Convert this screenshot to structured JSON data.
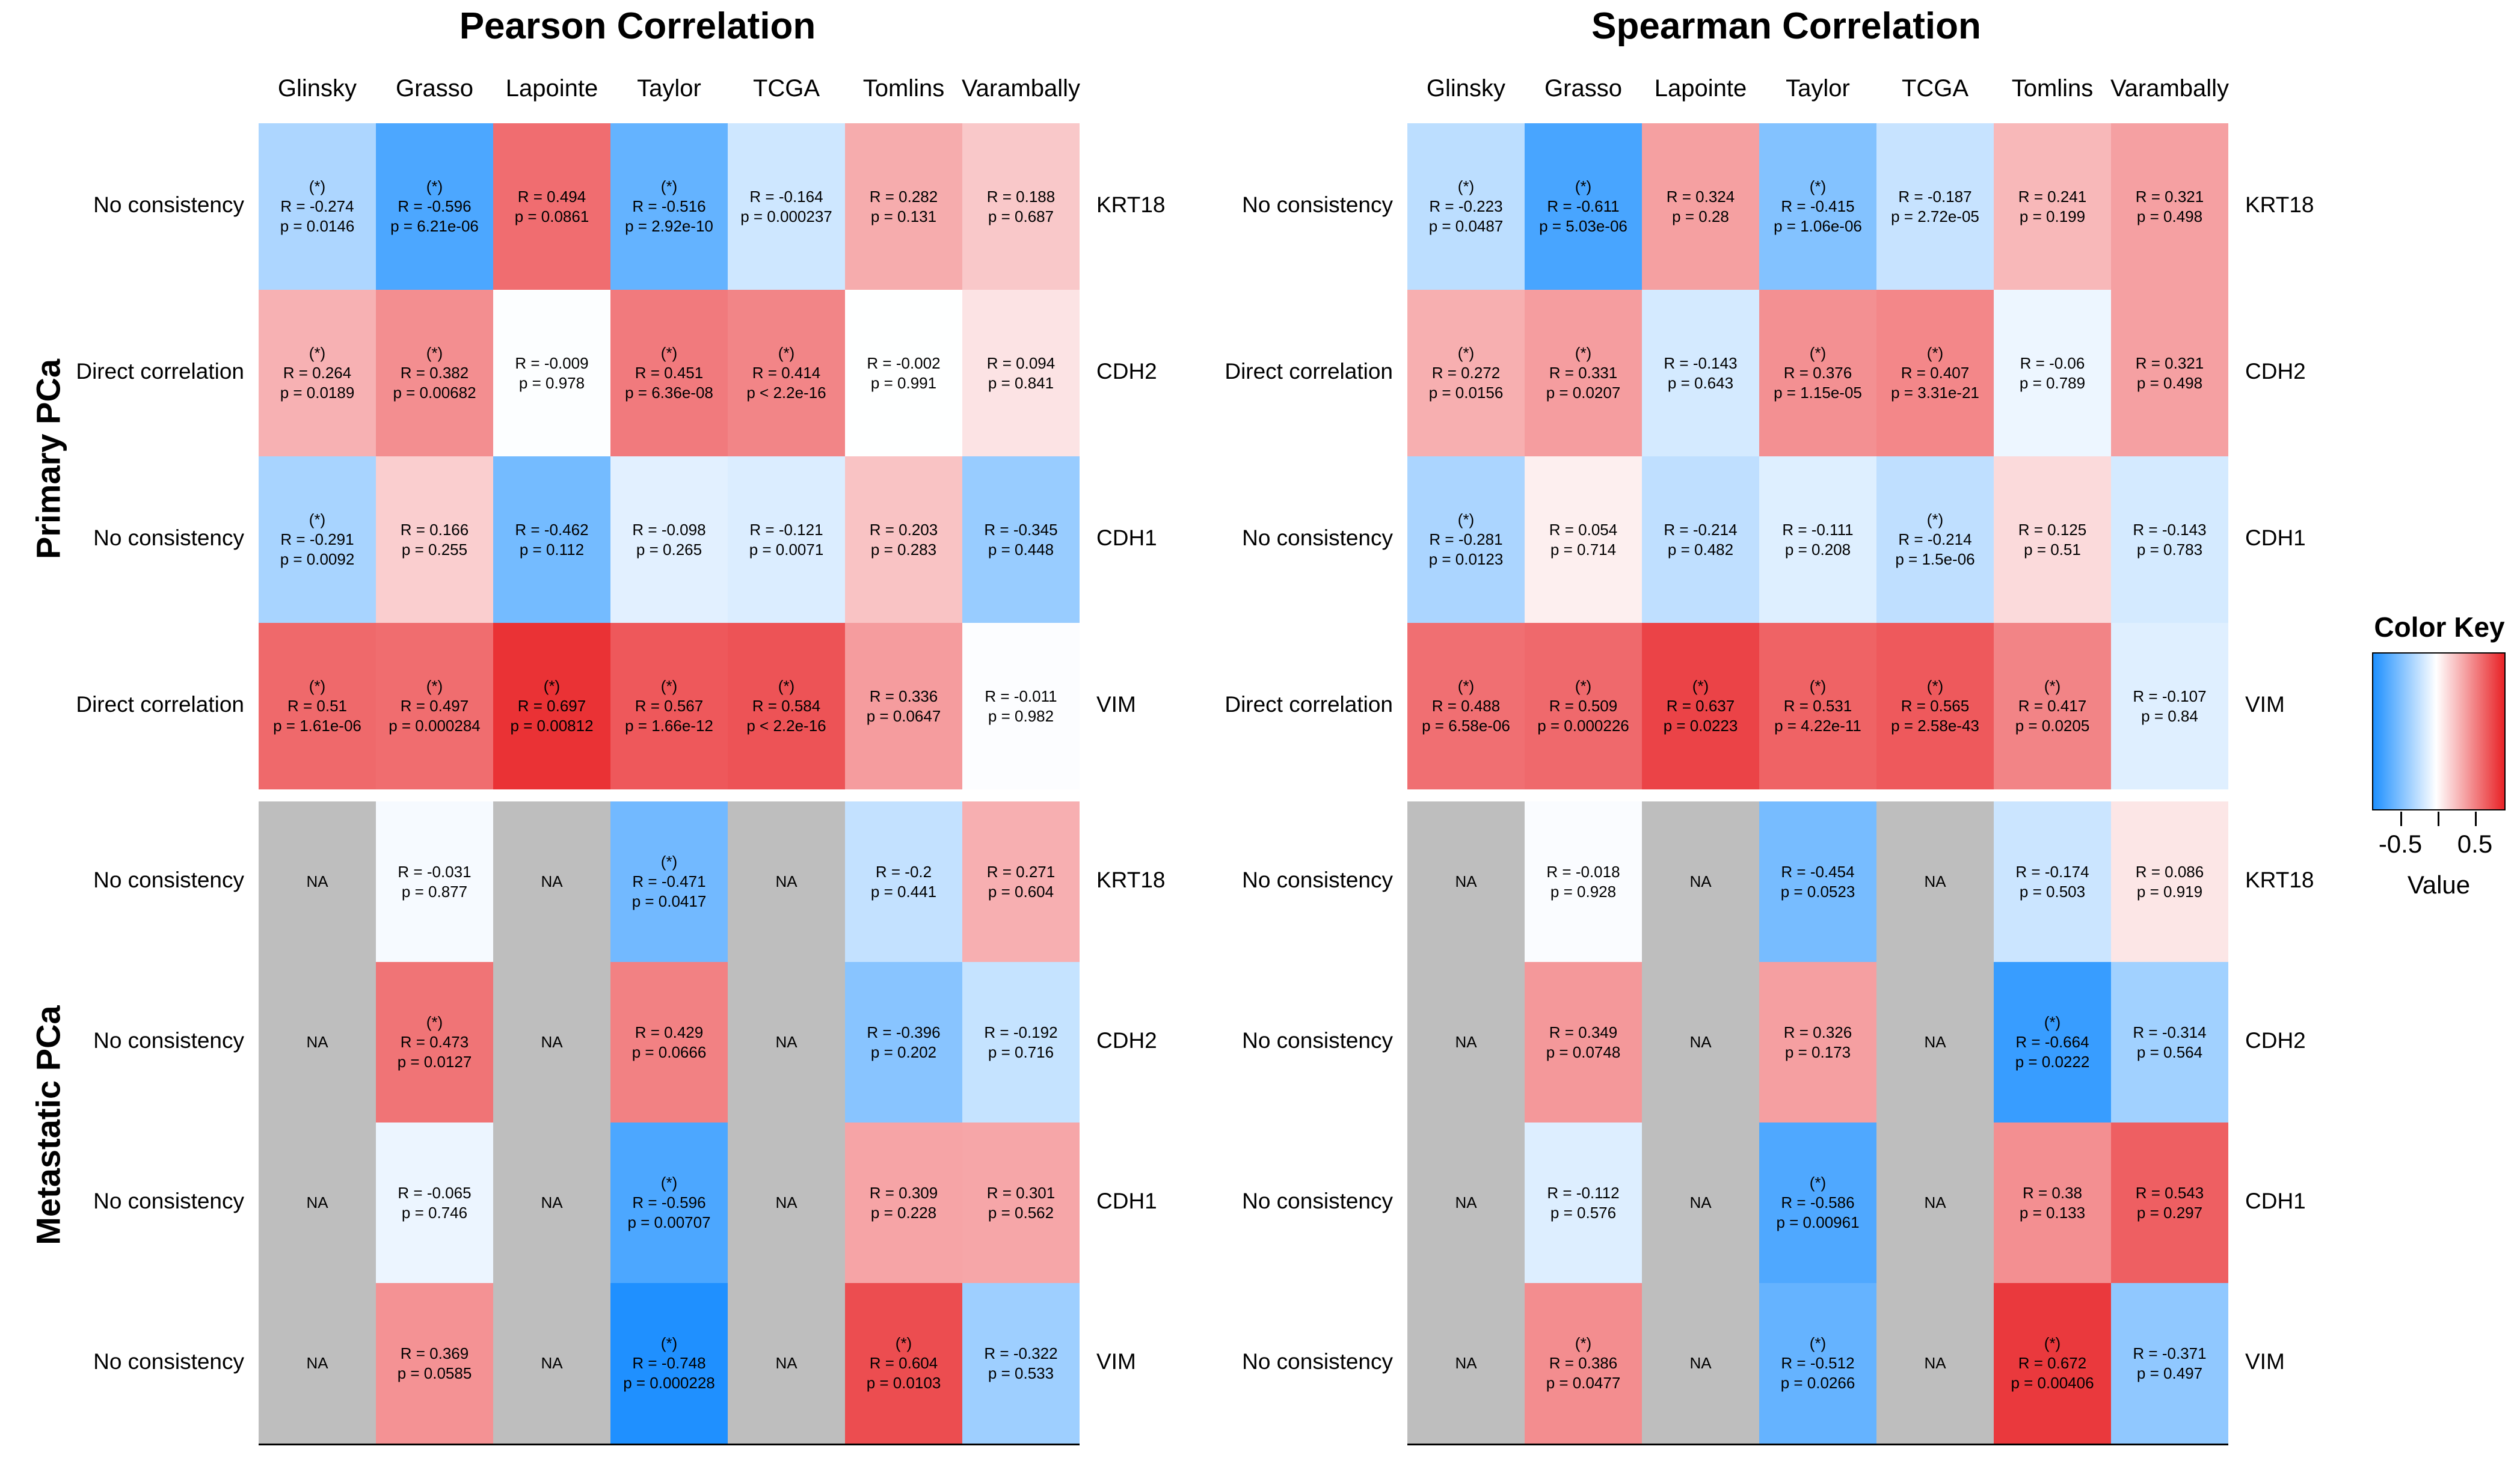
{
  "figure": {
    "kind": "correlation-heatmap-figure"
  },
  "chart_data": {
    "type": "heatmap",
    "value_scale": {
      "saturation_at": 0.75
    },
    "colors": {
      "negative": "#1E90FF",
      "zero": "#FFFFFF",
      "positive": "#E82226",
      "na": "#BEBEBE"
    },
    "color_key": {
      "title": "Color Key",
      "xlabel": "Value",
      "tick_labels": [
        "-0.5",
        "0.5"
      ],
      "tick_positions_pct": [
        21,
        49,
        77
      ],
      "labeled_tick_idx": [
        0,
        2
      ]
    },
    "na_text": "NA",
    "sig_marker": "(*)",
    "columns": [
      "Glinsky",
      "Grasso",
      "Lapointe",
      "Taylor",
      "TCGA",
      "Tomlins",
      "Varambally"
    ],
    "group_labels": [
      "Primary PCa",
      "Metastatic PCa"
    ],
    "panels": [
      {
        "title": "Pearson Correlation",
        "groups": [
          {
            "group": "Primary PCa",
            "rows": [
              {
                "consistency": "No consistency",
                "gene": "KRT18",
                "cells": [
                  {
                    "r": -0.274,
                    "p": "0.0146",
                    "sig": true
                  },
                  {
                    "r": -0.596,
                    "p": "6.21e-06",
                    "sig": true
                  },
                  {
                    "r": 0.494,
                    "p": "0.0861",
                    "sig": false
                  },
                  {
                    "r": -0.516,
                    "p": "2.92e-10",
                    "sig": true
                  },
                  {
                    "r": -0.164,
                    "p": "0.000237",
                    "sig": false
                  },
                  {
                    "r": 0.282,
                    "p": "0.131",
                    "sig": false
                  },
                  {
                    "r": 0.188,
                    "p": "0.687",
                    "sig": false
                  }
                ]
              },
              {
                "consistency": "Direct correlation",
                "gene": "CDH2",
                "cells": [
                  {
                    "r": 0.264,
                    "p": "0.0189",
                    "sig": true
                  },
                  {
                    "r": 0.382,
                    "p": "0.00682",
                    "sig": true
                  },
                  {
                    "r": -0.009,
                    "p": "0.978",
                    "sig": false
                  },
                  {
                    "r": 0.451,
                    "p": "6.36e-08",
                    "sig": true
                  },
                  {
                    "r": 0.414,
                    "p": "< 2.2e-16",
                    "sig": true
                  },
                  {
                    "r": -0.002,
                    "p": "0.991",
                    "sig": false
                  },
                  {
                    "r": 0.094,
                    "p": "0.841",
                    "sig": false
                  }
                ]
              },
              {
                "consistency": "No consistency",
                "gene": "CDH1",
                "cells": [
                  {
                    "r": -0.291,
                    "p": "0.0092",
                    "sig": true
                  },
                  {
                    "r": 0.166,
                    "p": "0.255",
                    "sig": false
                  },
                  {
                    "r": -0.462,
                    "p": "0.112",
                    "sig": false
                  },
                  {
                    "r": -0.098,
                    "p": "0.265",
                    "sig": false
                  },
                  {
                    "r": -0.121,
                    "p": "0.0071",
                    "sig": false
                  },
                  {
                    "r": 0.203,
                    "p": "0.283",
                    "sig": false
                  },
                  {
                    "r": -0.345,
                    "p": "0.448",
                    "sig": false
                  }
                ]
              },
              {
                "consistency": "Direct correlation",
                "gene": "VIM",
                "cells": [
                  {
                    "r": 0.51,
                    "p": "1.61e-06",
                    "sig": true
                  },
                  {
                    "r": 0.497,
                    "p": "0.000284",
                    "sig": true
                  },
                  {
                    "r": 0.697,
                    "p": "0.00812",
                    "sig": true
                  },
                  {
                    "r": 0.567,
                    "p": "1.66e-12",
                    "sig": true
                  },
                  {
                    "r": 0.584,
                    "p": "< 2.2e-16",
                    "sig": true
                  },
                  {
                    "r": 0.336,
                    "p": "0.0647",
                    "sig": false
                  },
                  {
                    "r": -0.011,
                    "p": "0.982",
                    "sig": false
                  }
                ]
              }
            ]
          },
          {
            "group": "Metastatic PCa",
            "rows": [
              {
                "consistency": "No consistency",
                "gene": "KRT18",
                "cells": [
                  {
                    "na": true
                  },
                  {
                    "r": -0.031,
                    "p": "0.877",
                    "sig": false
                  },
                  {
                    "na": true
                  },
                  {
                    "r": -0.471,
                    "p": "0.0417",
                    "sig": true
                  },
                  {
                    "na": true
                  },
                  {
                    "r": -0.2,
                    "p": "0.441",
                    "sig": false
                  },
                  {
                    "r": 0.271,
                    "p": "0.604",
                    "sig": false
                  }
                ]
              },
              {
                "consistency": "No consistency",
                "gene": "CDH2",
                "cells": [
                  {
                    "na": true
                  },
                  {
                    "r": 0.473,
                    "p": "0.0127",
                    "sig": true
                  },
                  {
                    "na": true
                  },
                  {
                    "r": 0.429,
                    "p": "0.0666",
                    "sig": false
                  },
                  {
                    "na": true
                  },
                  {
                    "r": -0.396,
                    "p": "0.202",
                    "sig": false
                  },
                  {
                    "r": -0.192,
                    "p": "0.716",
                    "sig": false
                  }
                ]
              },
              {
                "consistency": "No consistency",
                "gene": "CDH1",
                "cells": [
                  {
                    "na": true
                  },
                  {
                    "r": -0.065,
                    "p": "0.746",
                    "sig": false
                  },
                  {
                    "na": true
                  },
                  {
                    "r": -0.596,
                    "p": "0.00707",
                    "sig": true
                  },
                  {
                    "na": true
                  },
                  {
                    "r": 0.309,
                    "p": "0.228",
                    "sig": false
                  },
                  {
                    "r": 0.301,
                    "p": "0.562",
                    "sig": false
                  }
                ]
              },
              {
                "consistency": "No consistency",
                "gene": "VIM",
                "cells": [
                  {
                    "na": true
                  },
                  {
                    "r": 0.369,
                    "p": "0.0585",
                    "sig": false
                  },
                  {
                    "na": true
                  },
                  {
                    "r": -0.748,
                    "p": "0.000228",
                    "sig": true
                  },
                  {
                    "na": true
                  },
                  {
                    "r": 0.604,
                    "p": "0.0103",
                    "sig": true
                  },
                  {
                    "r": -0.322,
                    "p": "0.533",
                    "sig": false
                  }
                ]
              }
            ]
          }
        ]
      },
      {
        "title": "Spearman Correlation",
        "groups": [
          {
            "group": "Primary PCa",
            "rows": [
              {
                "consistency": "No consistency",
                "gene": "KRT18",
                "cells": [
                  {
                    "r": -0.223,
                    "p": "0.0487",
                    "sig": true
                  },
                  {
                    "r": -0.611,
                    "p": "5.03e-06",
                    "sig": true
                  },
                  {
                    "r": 0.324,
                    "p": "0.28",
                    "sig": false
                  },
                  {
                    "r": -0.415,
                    "p": "1.06e-06",
                    "sig": true
                  },
                  {
                    "r": -0.187,
                    "p": "2.72e-05",
                    "sig": false
                  },
                  {
                    "r": 0.241,
                    "p": "0.199",
                    "sig": false
                  },
                  {
                    "r": 0.321,
                    "p": "0.498",
                    "sig": false
                  }
                ]
              },
              {
                "consistency": "Direct correlation",
                "gene": "CDH2",
                "cells": [
                  {
                    "r": 0.272,
                    "p": "0.0156",
                    "sig": true
                  },
                  {
                    "r": 0.331,
                    "p": "0.0207",
                    "sig": true
                  },
                  {
                    "r": -0.143,
                    "p": "0.643",
                    "sig": false
                  },
                  {
                    "r": 0.376,
                    "p": "1.15e-05",
                    "sig": true
                  },
                  {
                    "r": 0.407,
                    "p": "3.31e-21",
                    "sig": true
                  },
                  {
                    "r": -0.06,
                    "p": "0.789",
                    "sig": false
                  },
                  {
                    "r": 0.321,
                    "p": "0.498",
                    "sig": false
                  }
                ]
              },
              {
                "consistency": "No consistency",
                "gene": "CDH1",
                "cells": [
                  {
                    "r": -0.281,
                    "p": "0.0123",
                    "sig": true
                  },
                  {
                    "r": 0.054,
                    "p": "0.714",
                    "sig": false
                  },
                  {
                    "r": -0.214,
                    "p": "0.482",
                    "sig": false
                  },
                  {
                    "r": -0.111,
                    "p": "0.208",
                    "sig": false
                  },
                  {
                    "r": -0.214,
                    "p": "1.5e-06",
                    "sig": true
                  },
                  {
                    "r": 0.125,
                    "p": "0.51",
                    "sig": false
                  },
                  {
                    "r": -0.143,
                    "p": "0.783",
                    "sig": false
                  }
                ]
              },
              {
                "consistency": "Direct correlation",
                "gene": "VIM",
                "cells": [
                  {
                    "r": 0.488,
                    "p": "6.58e-06",
                    "sig": true
                  },
                  {
                    "r": 0.509,
                    "p": "0.000226",
                    "sig": true
                  },
                  {
                    "r": 0.637,
                    "p": "0.0223",
                    "sig": true
                  },
                  {
                    "r": 0.531,
                    "p": "4.22e-11",
                    "sig": true
                  },
                  {
                    "r": 0.565,
                    "p": "2.58e-43",
                    "sig": true
                  },
                  {
                    "r": 0.417,
                    "p": "0.0205",
                    "sig": true
                  },
                  {
                    "r": -0.107,
                    "p": "0.84",
                    "sig": false
                  }
                ]
              }
            ]
          },
          {
            "group": "Metastatic PCa",
            "rows": [
              {
                "consistency": "No consistency",
                "gene": "KRT18",
                "cells": [
                  {
                    "na": true
                  },
                  {
                    "r": -0.018,
                    "p": "0.928",
                    "sig": false
                  },
                  {
                    "na": true
                  },
                  {
                    "r": -0.454,
                    "p": "0.0523",
                    "sig": false
                  },
                  {
                    "na": true
                  },
                  {
                    "r": -0.174,
                    "p": "0.503",
                    "sig": false
                  },
                  {
                    "r": 0.086,
                    "p": "0.919",
                    "sig": false
                  }
                ]
              },
              {
                "consistency": "No consistency",
                "gene": "CDH2",
                "cells": [
                  {
                    "na": true
                  },
                  {
                    "r": 0.349,
                    "p": "0.0748",
                    "sig": false
                  },
                  {
                    "na": true
                  },
                  {
                    "r": 0.326,
                    "p": "0.173",
                    "sig": false
                  },
                  {
                    "na": true
                  },
                  {
                    "r": -0.664,
                    "p": "0.0222",
                    "sig": true
                  },
                  {
                    "r": -0.314,
                    "p": "0.564",
                    "sig": false
                  }
                ]
              },
              {
                "consistency": "No consistency",
                "gene": "CDH1",
                "cells": [
                  {
                    "na": true
                  },
                  {
                    "r": -0.112,
                    "p": "0.576",
                    "sig": false
                  },
                  {
                    "na": true
                  },
                  {
                    "r": -0.586,
                    "p": "0.00961",
                    "sig": true
                  },
                  {
                    "na": true
                  },
                  {
                    "r": 0.38,
                    "p": "0.133",
                    "sig": false
                  },
                  {
                    "r": 0.543,
                    "p": "0.297",
                    "sig": false
                  }
                ]
              },
              {
                "consistency": "No consistency",
                "gene": "VIM",
                "cells": [
                  {
                    "na": true
                  },
                  {
                    "r": 0.386,
                    "p": "0.0477",
                    "sig": true
                  },
                  {
                    "na": true
                  },
                  {
                    "r": -0.512,
                    "p": "0.0266",
                    "sig": true
                  },
                  {
                    "na": true
                  },
                  {
                    "r": 0.672,
                    "p": "0.00406",
                    "sig": true
                  },
                  {
                    "r": -0.371,
                    "p": "0.497",
                    "sig": false
                  }
                ]
              }
            ]
          }
        ]
      }
    ]
  }
}
